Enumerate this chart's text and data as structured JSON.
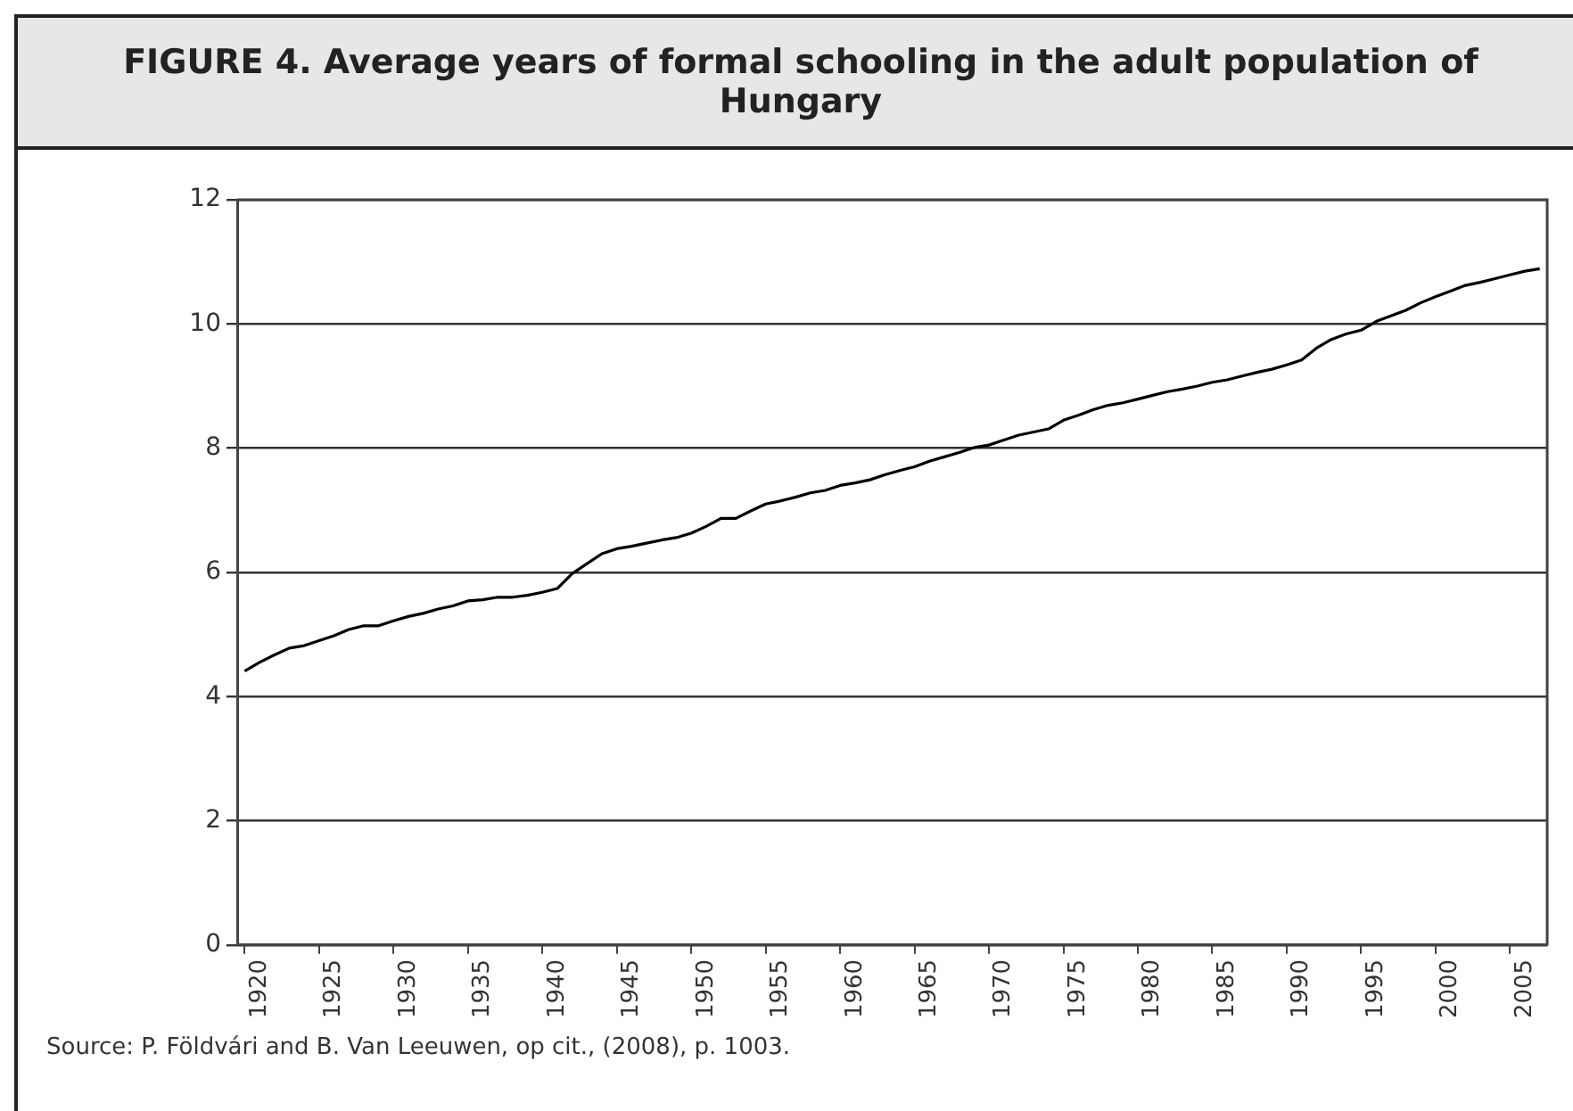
{
  "chart_data": {
    "type": "line",
    "title": "FIGURE 4. Average years of formal schooling in the adult population of Hungary",
    "categories": [
      null,
      "1920",
      null,
      null,
      null,
      null,
      "1925",
      null,
      null,
      null,
      null,
      "1930",
      null,
      null,
      null,
      null,
      "1935",
      null,
      null,
      null,
      null,
      "1940",
      null,
      null,
      null,
      null,
      "1945",
      null,
      null,
      null,
      null,
      "1950",
      null,
      null,
      null,
      null,
      "1955",
      null,
      null,
      null,
      null,
      "1960",
      null,
      null,
      null,
      null,
      "1965",
      null,
      null,
      null,
      null,
      "1970",
      null,
      null,
      null,
      null,
      "1975",
      null,
      null,
      null,
      null,
      "1980",
      null,
      null,
      null,
      null,
      "1985",
      null,
      null,
      null,
      null,
      "1990",
      null,
      null,
      null,
      null,
      "1995",
      null,
      null,
      null,
      null,
      "2000",
      null,
      null,
      null,
      null,
      "2005",
      null
    ],
    "series": [
      {
        "color": "#000000",
        "values": [
          4.41,
          4.55,
          4.67,
          4.78,
          4.82,
          4.9,
          4.98,
          5.08,
          5.14,
          5.14,
          5.22,
          5.29,
          5.34,
          5.41,
          5.46,
          5.54,
          5.56,
          5.6,
          5.6,
          5.63,
          5.68,
          5.74,
          5.98,
          6.14,
          6.3,
          6.38,
          6.42,
          6.47,
          6.52,
          6.56,
          6.63,
          6.74,
          6.87,
          6.87,
          6.99,
          7.1,
          7.15,
          7.21,
          7.28,
          7.32,
          7.4,
          7.44,
          7.49,
          7.57,
          7.64,
          7.7,
          7.79,
          7.86,
          7.93,
          8.01,
          8.05,
          8.13,
          8.21,
          8.26,
          8.31,
          8.45,
          8.53,
          8.62,
          8.69,
          8.73,
          8.79,
          8.85,
          8.91,
          8.95,
          9.0,
          9.06,
          9.1,
          9.16,
          9.22,
          9.27,
          9.34,
          9.42,
          9.61,
          9.75,
          9.84,
          9.9,
          10.04,
          10.13,
          10.22,
          10.34,
          10.44,
          10.53,
          10.62,
          10.67,
          10.73,
          10.79,
          10.85,
          10.89
        ]
      }
    ],
    "ylim": [
      0,
      12
    ],
    "yticks": [
      0,
      2,
      4,
      6,
      8,
      10,
      12
    ],
    "grid": "y",
    "marker": "none",
    "line_style": "solid",
    "legend": false,
    "annotations": [
      "Source: P. Földvári and B. Van Leeuwen, op cit., (2008), p. 1003."
    ]
  }
}
